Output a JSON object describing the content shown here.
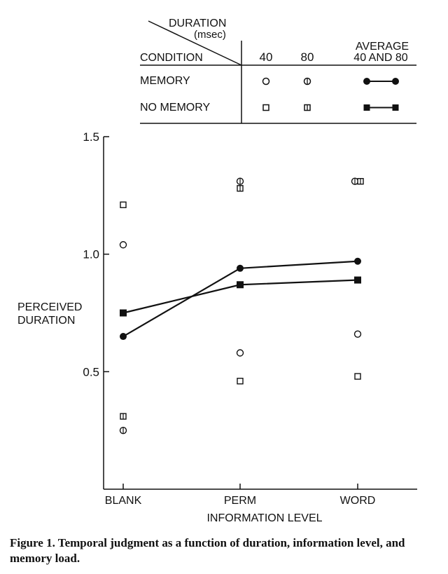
{
  "legend_table": {
    "header_duration": "DURATION",
    "header_duration_unit": "(msec)",
    "header_condition": "CONDITION",
    "columns": [
      "40",
      "80"
    ],
    "average_label_1": "AVERAGE",
    "average_label_2": "40 AND 80",
    "rows": [
      {
        "label": "MEMORY",
        "marker": "circle"
      },
      {
        "label": "NO MEMORY",
        "marker": "square"
      }
    ]
  },
  "chart_data": {
    "type": "line",
    "xlabel": "INFORMATION LEVEL",
    "ylabel_lines": [
      "PERCEIVED",
      "DURATION"
    ],
    "categories": [
      "BLANK",
      "PERM",
      "WORD"
    ],
    "ylim": [
      0,
      1.5
    ],
    "yticks": [
      0.5,
      1.0,
      1.5
    ],
    "ytick_labels": [
      "0.5",
      "1.0",
      "1.5"
    ],
    "series": [
      {
        "condition": "MEMORY",
        "duration": "40",
        "marker": "circle-open",
        "values": [
          1.04,
          0.58,
          0.66
        ]
      },
      {
        "condition": "MEMORY",
        "duration": "80",
        "marker": "circle-bar",
        "values": [
          0.25,
          1.31,
          1.31
        ]
      },
      {
        "condition": "NO MEMORY",
        "duration": "40",
        "marker": "square-open",
        "values": [
          1.21,
          0.46,
          0.48
        ]
      },
      {
        "condition": "NO MEMORY",
        "duration": "80",
        "marker": "square-bar",
        "values": [
          0.31,
          1.28,
          1.31
        ]
      },
      {
        "condition": "MEMORY",
        "duration": "40 AND 80",
        "marker": "circle-filled",
        "values": [
          0.65,
          0.94,
          0.97
        ]
      },
      {
        "condition": "NO MEMORY",
        "duration": "40 AND 80",
        "marker": "square-filled",
        "values": [
          0.75,
          0.87,
          0.89
        ]
      }
    ]
  },
  "caption": "Figure 1. Temporal judgment as a function of duration, information level, and memory load."
}
